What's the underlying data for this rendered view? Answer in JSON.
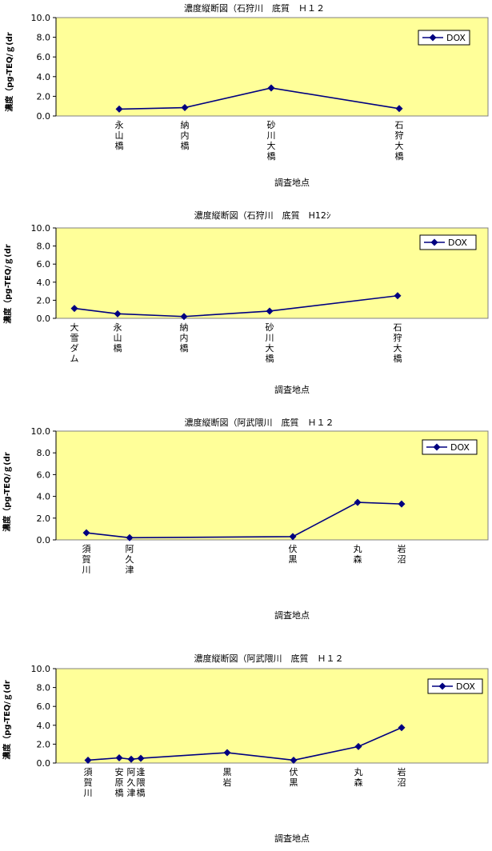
{
  "chart_data": [
    {
      "type": "line",
      "title": "濃度縦断図（石狩川　底質　Ｈ１２",
      "ylabel": "濃度（pg-TEQ/ｇ(dr",
      "xlabel": "調査地点",
      "ylim": [
        0,
        10
      ],
      "yticks": [
        "0.0",
        "2.0",
        "4.0",
        "6.0",
        "8.0",
        "10.0"
      ],
      "grid": false,
      "legend": "top-right",
      "legend_marker": "diamond",
      "categories": [
        "永山橋",
        "納内橋",
        "砂川大橋",
        "石狩大橋"
      ],
      "series": [
        {
          "name": "DOX",
          "color": "#000080",
          "values": [
            0.7,
            0.85,
            2.85,
            0.75
          ]
        }
      ]
    },
    {
      "type": "line",
      "title": "濃度縦断図（石狩川　底質　H12ｼ",
      "ylabel": "濃度（pg-TEQ/ｇ(dr",
      "xlabel": "調査地点",
      "ylim": [
        0,
        10
      ],
      "yticks": [
        "0.0",
        "2.0",
        "4.0",
        "6.0",
        "8.0",
        "10.0"
      ],
      "grid": false,
      "legend": "top-right",
      "legend_marker": "diamond",
      "categories": [
        "大雪ダム",
        "永山橋",
        "納内橋",
        "砂川大橋",
        "石狩大橋"
      ],
      "series": [
        {
          "name": "DOX",
          "color": "#000080",
          "values": [
            1.1,
            0.5,
            0.2,
            0.8,
            2.5
          ]
        }
      ]
    },
    {
      "type": "line",
      "title": "濃度縦断図（阿武隈川　底質　Ｈ１２",
      "ylabel": "濃度（pg-TEQ/ｇ(dr",
      "xlabel": "調査地点",
      "ylim": [
        0,
        10
      ],
      "yticks": [
        "0.0",
        "2.0",
        "4.0",
        "6.0",
        "8.0",
        "10.0"
      ],
      "grid": false,
      "legend": "top-right",
      "legend_marker": "diamond",
      "categories": [
        "須賀川",
        "阿久津",
        "伏黒",
        "丸森",
        "岩沼"
      ],
      "series": [
        {
          "name": "DOX",
          "color": "#000080",
          "values": [
            0.65,
            0.2,
            0.3,
            3.45,
            3.3
          ]
        }
      ]
    },
    {
      "type": "line",
      "title": "濃度縦断図（阿武隈川　底質　Ｈ１２",
      "ylabel": "濃度（pg-TEQ/ｇ(dr",
      "xlabel": "調査地点",
      "ylim": [
        0,
        10
      ],
      "yticks": [
        "0.0",
        "2.0",
        "4.0",
        "6.0",
        "8.0",
        "10.0"
      ],
      "grid": false,
      "legend": "top-right",
      "legend_marker": "diamond",
      "categories": [
        "須賀川",
        "安原橋",
        "阿久津",
        "逢隈橋",
        "黒岩",
        "伏黒",
        "丸森",
        "岩沼"
      ],
      "series": [
        {
          "name": "DOX",
          "color": "#000080",
          "values": [
            0.3,
            0.55,
            0.4,
            0.5,
            1.1,
            0.3,
            1.75,
            3.75
          ]
        }
      ]
    }
  ]
}
